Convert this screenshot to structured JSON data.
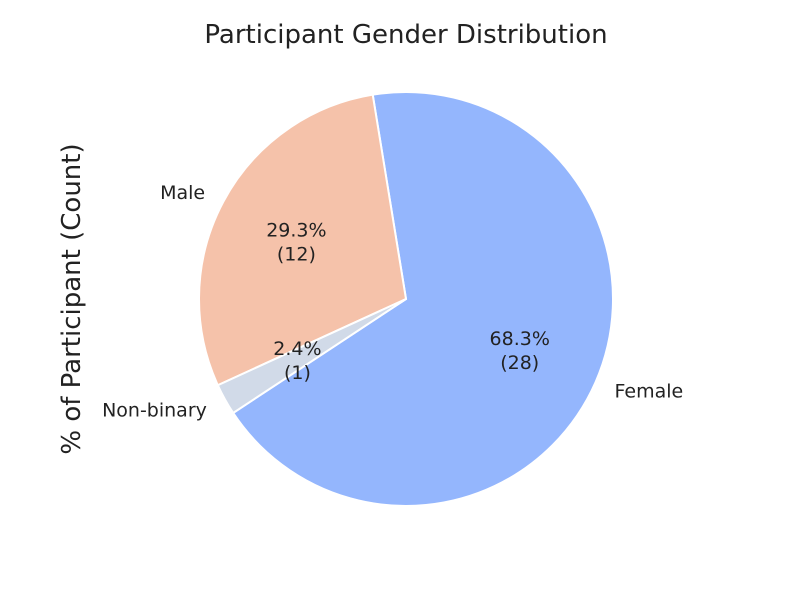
{
  "chart_data": {
    "type": "pie",
    "title": "Participant Gender Distribution",
    "ylabel": "% of Participant (Count)",
    "slices": [
      {
        "name": "Female",
        "value": 28,
        "percent_label": "68.3%",
        "count_label": "(28)",
        "color": "#94b6fd"
      },
      {
        "name": "Male",
        "value": 12,
        "percent_label": "29.3%",
        "count_label": "(12)",
        "color": "#f5c2aa"
      },
      {
        "name": "Non-binary",
        "value": 1,
        "percent_label": "2.4%",
        "count_label": "(1)",
        "color": "#d1dae8"
      }
    ],
    "start_angle_deg": 213.4,
    "direction": "counterclockwise",
    "slice_edge_color": "#ffffff"
  }
}
